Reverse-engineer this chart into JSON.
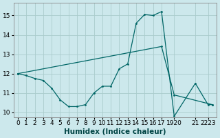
{
  "xlabel": "Humidex (Indice chaleur)",
  "bg_color": "#cce8ec",
  "line_color": "#006666",
  "grid_color": "#aacccc",
  "xlim": [
    -0.5,
    23.5
  ],
  "ylim": [
    9.75,
    15.65
  ],
  "yticks": [
    10,
    11,
    12,
    13,
    14,
    15
  ],
  "line1_x": [
    0,
    1,
    2,
    3,
    4,
    5,
    6,
    7,
    8,
    9,
    10,
    11,
    12,
    13,
    14,
    15,
    16,
    17,
    20,
    21,
    22,
    23
  ],
  "line1_y": [
    12.0,
    11.9,
    11.75,
    11.65,
    11.25,
    10.65,
    10.3,
    10.3,
    10.4,
    11.0,
    11.35,
    11.35,
    12.25,
    12.5,
    14.6,
    15.05,
    15.0,
    15.2,
    9.8,
    11.5,
    10.4,
    10.4
  ],
  "line2_x": [
    0,
    17,
    20,
    23
  ],
  "line2_y": [
    12.0,
    13.4,
    10.9,
    10.4
  ],
  "xtick_pos": [
    0,
    1,
    2,
    3,
    4,
    5,
    6,
    7,
    8,
    9,
    10,
    11,
    12,
    13,
    14,
    15,
    16,
    17,
    18.5,
    21,
    22.5
  ],
  "xtick_lbl": [
    "0",
    "1",
    "2",
    "3",
    "4",
    "5",
    "6",
    "7",
    "8",
    "9",
    "10",
    "11",
    "12",
    "13",
    "14",
    "15",
    "16",
    "17",
    "1920",
    "21",
    "2223"
  ],
  "fontsize_label": 7,
  "fontsize_tick": 6.5,
  "fontsize_xlabel": 7.5
}
